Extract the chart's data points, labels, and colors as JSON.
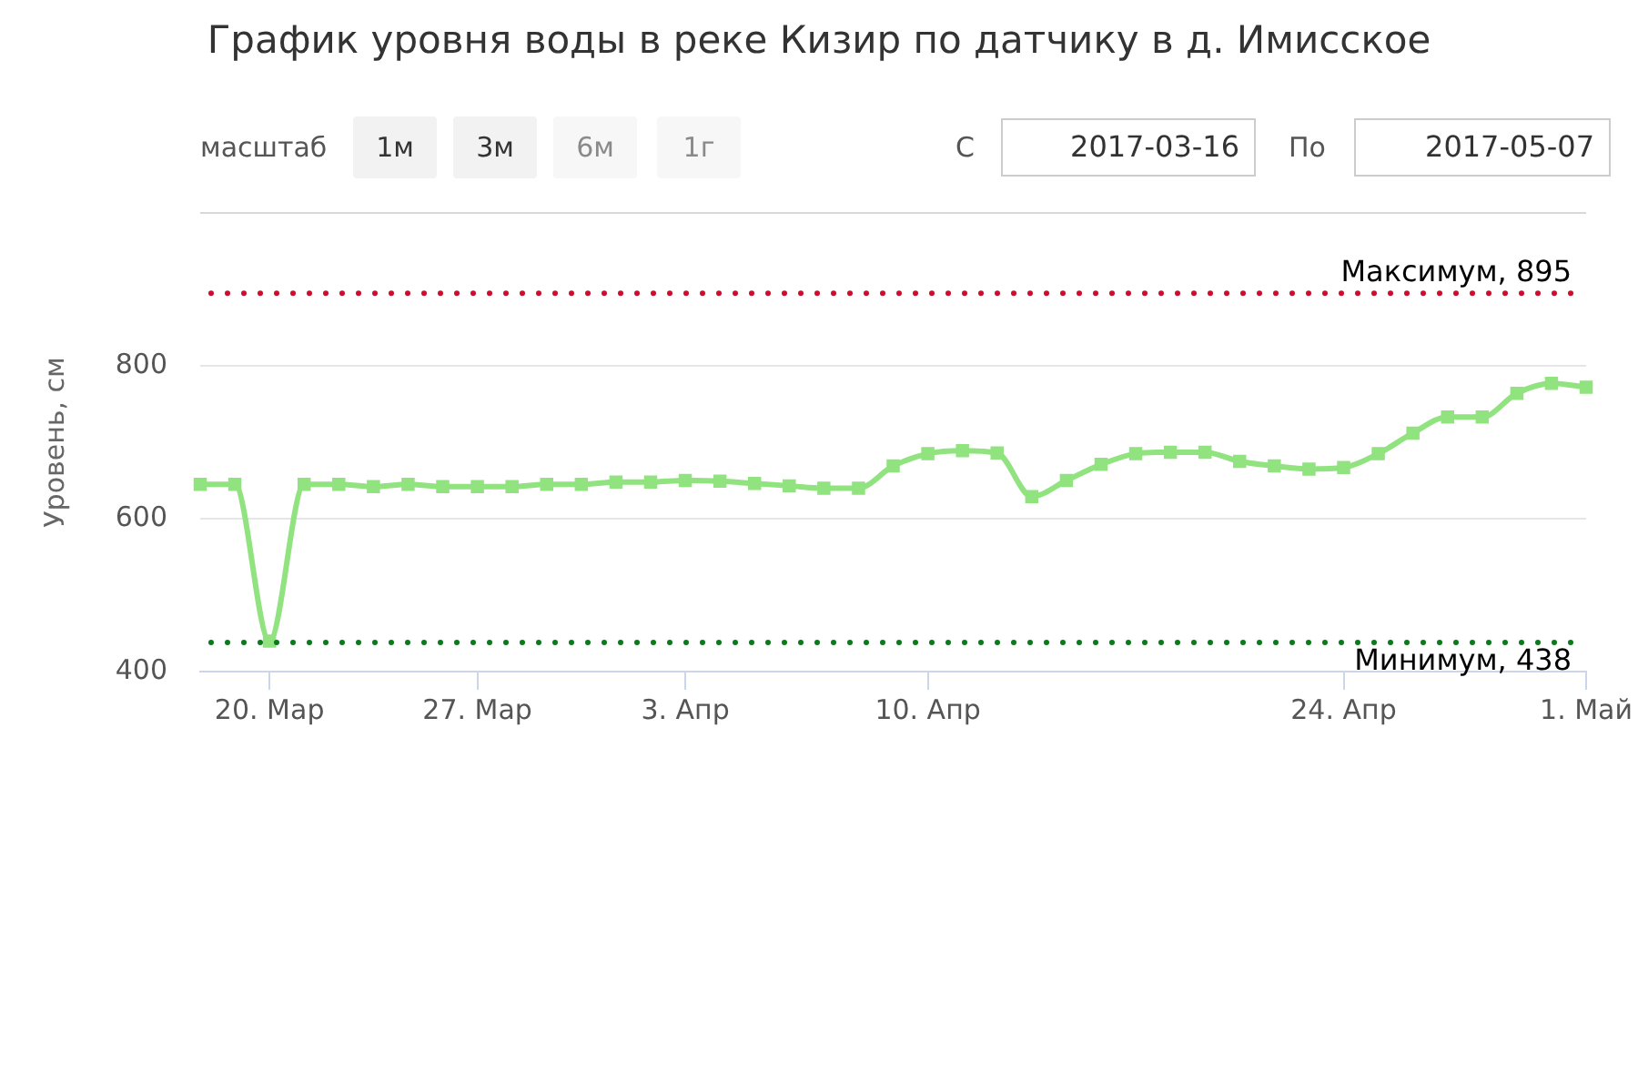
{
  "chart_data": {
    "type": "line",
    "title": "График уровня воды в реке Кизир по датчику в д. Имисское",
    "ylabel": "Уровень, см",
    "categories": [
      null,
      null,
      "20. Мар",
      null,
      null,
      null,
      null,
      null,
      "27. Мар",
      null,
      null,
      null,
      null,
      null,
      "3. Апр",
      null,
      null,
      null,
      null,
      null,
      null,
      "10. Апр",
      null,
      null,
      null,
      null,
      null,
      null,
      null,
      null,
      null,
      null,
      null,
      "24. Апр",
      null,
      null,
      null,
      null,
      null,
      null,
      "1. Май"
    ],
    "series": [
      {
        "color": "#90e37f",
        "values": [
          645,
          645,
          440,
          645,
          645,
          642,
          645,
          642,
          642,
          642,
          645,
          645,
          648,
          648,
          650,
          649,
          646,
          643,
          640,
          640,
          669,
          685,
          689,
          686,
          629,
          650,
          671,
          685,
          687,
          687,
          675,
          669,
          665,
          667,
          685,
          712,
          733,
          733,
          764,
          777,
          772
        ]
      }
    ],
    "ylim": [
      400,
      1000
    ],
    "yticks": [
      400,
      600,
      800
    ],
    "grid": "y",
    "marker": "square",
    "ref_lines": [
      {
        "axis": "y",
        "value": 895,
        "label": "Максимум, 895",
        "color": "#c8102e",
        "line_style": "dotted"
      },
      {
        "axis": "y",
        "value": 438,
        "label": "Минимум, 438",
        "color": "#0a7a1a",
        "line_style": "dotted"
      }
    ],
    "annotations": [
      "масштаб",
      "1м",
      "3м",
      "6м",
      "1г",
      "С",
      "2017-03-16",
      "По",
      "2017-05-07"
    ]
  }
}
